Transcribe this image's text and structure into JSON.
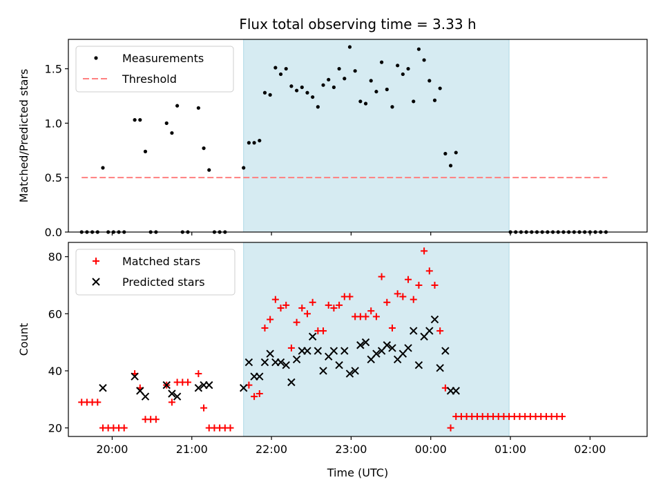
{
  "title": "Flux total observing time = 3.33 h",
  "colors": {
    "measurement": "#000000",
    "threshold": "#ff7f7f",
    "matched": "#ff0000",
    "predicted": "#000000",
    "shade": "#add8e6"
  },
  "chart_data": [
    {
      "type": "scatter",
      "panel": "top",
      "ylabel": "Matched/Predicted stars",
      "ylim": [
        0,
        1.77
      ],
      "xlim": [
        "19:27",
        "02:43"
      ],
      "yticks": [
        "0.0",
        "0.5",
        "1.0",
        "1.5"
      ],
      "legend": {
        "placement": "top-left",
        "entries": [
          "Measurements",
          "Threshold"
        ]
      },
      "shaded_region": [
        "21:39",
        "00:59"
      ],
      "threshold": {
        "value": 0.5,
        "x_range": [
          "19:37",
          "02:13"
        ],
        "style": "dashed"
      },
      "series": [
        {
          "name": "Measurements",
          "marker": "dot",
          "points": [
            [
              "19:37",
              0
            ],
            [
              "19:41",
              0
            ],
            [
              "19:45",
              0
            ],
            [
              "19:49",
              0
            ],
            [
              "19:53",
              0.59
            ],
            [
              "19:57",
              0
            ],
            [
              "20:01",
              0
            ],
            [
              "20:05",
              0
            ],
            [
              "20:09",
              0
            ],
            [
              "20:17",
              1.03
            ],
            [
              "20:21",
              1.03
            ],
            [
              "20:25",
              0.74
            ],
            [
              "20:29",
              0
            ],
            [
              "20:33",
              0
            ],
            [
              "20:41",
              1.0
            ],
            [
              "20:45",
              0.91
            ],
            [
              "20:49",
              1.16
            ],
            [
              "20:53",
              0
            ],
            [
              "20:57",
              0
            ],
            [
              "21:05",
              1.14
            ],
            [
              "21:09",
              0.77
            ],
            [
              "21:13",
              0.57
            ],
            [
              "21:17",
              0
            ],
            [
              "21:21",
              0
            ],
            [
              "21:25",
              0
            ],
            [
              "21:39",
              0.59
            ],
            [
              "21:43",
              0.82
            ],
            [
              "21:47",
              0.82
            ],
            [
              "21:51",
              0.84
            ],
            [
              "21:55",
              1.28
            ],
            [
              "21:59",
              1.26
            ],
            [
              "22:03",
              1.51
            ],
            [
              "22:07",
              1.45
            ],
            [
              "22:11",
              1.5
            ],
            [
              "22:15",
              1.34
            ],
            [
              "22:19",
              1.3
            ],
            [
              "22:23",
              1.33
            ],
            [
              "22:27",
              1.28
            ],
            [
              "22:31",
              1.24
            ],
            [
              "22:35",
              1.15
            ],
            [
              "22:39",
              1.35
            ],
            [
              "22:43",
              1.4
            ],
            [
              "22:47",
              1.33
            ],
            [
              "22:51",
              1.5
            ],
            [
              "22:55",
              1.41
            ],
            [
              "22:59",
              1.7
            ],
            [
              "23:03",
              1.48
            ],
            [
              "23:07",
              1.2
            ],
            [
              "23:11",
              1.18
            ],
            [
              "23:15",
              1.39
            ],
            [
              "23:19",
              1.29
            ],
            [
              "23:23",
              1.56
            ],
            [
              "23:27",
              1.31
            ],
            [
              "23:31",
              1.15
            ],
            [
              "23:35",
              1.53
            ],
            [
              "23:39",
              1.45
            ],
            [
              "23:43",
              1.5
            ],
            [
              "23:47",
              1.2
            ],
            [
              "23:51",
              1.68
            ],
            [
              "23:55",
              1.58
            ],
            [
              "23:59",
              1.39
            ],
            [
              "00:03",
              1.21
            ],
            [
              "00:07",
              1.32
            ],
            [
              "00:11",
              0.72
            ],
            [
              "00:15",
              0.61
            ],
            [
              "00:19",
              0.73
            ],
            [
              "01:00",
              0
            ],
            [
              "01:04",
              0
            ],
            [
              "01:08",
              0
            ],
            [
              "01:12",
              0
            ],
            [
              "01:16",
              0
            ],
            [
              "01:20",
              0
            ],
            [
              "01:24",
              0
            ],
            [
              "01:28",
              0
            ],
            [
              "01:32",
              0
            ],
            [
              "01:36",
              0
            ],
            [
              "01:40",
              0
            ],
            [
              "01:44",
              0
            ],
            [
              "01:48",
              0
            ],
            [
              "01:52",
              0
            ],
            [
              "01:56",
              0
            ],
            [
              "02:00",
              0
            ],
            [
              "02:04",
              0
            ],
            [
              "02:08",
              0
            ],
            [
              "02:12",
              0
            ]
          ]
        }
      ]
    },
    {
      "type": "scatter",
      "panel": "bottom",
      "xlabel": "Time (UTC)",
      "ylabel": "Count",
      "ylim": [
        17,
        85
      ],
      "xlim": [
        "19:27",
        "02:43"
      ],
      "yticks": [
        "20",
        "40",
        "60",
        "80"
      ],
      "xticks": [
        "20:00",
        "21:00",
        "22:00",
        "23:00",
        "00:00",
        "01:00",
        "02:00"
      ],
      "legend": {
        "placement": "top-left",
        "entries": [
          "Matched stars",
          "Predicted stars"
        ]
      },
      "shaded_region": [
        "21:39",
        "00:59"
      ],
      "series": [
        {
          "name": "Matched stars",
          "marker": "plus",
          "points": [
            [
              "19:37",
              29
            ],
            [
              "19:41",
              29
            ],
            [
              "19:45",
              29
            ],
            [
              "19:49",
              29
            ],
            [
              "19:53",
              20
            ],
            [
              "19:57",
              20
            ],
            [
              "20:01",
              20
            ],
            [
              "20:05",
              20
            ],
            [
              "20:09",
              20
            ],
            [
              "20:17",
              39
            ],
            [
              "20:21",
              34
            ],
            [
              "20:25",
              23
            ],
            [
              "20:29",
              23
            ],
            [
              "20:33",
              23
            ],
            [
              "20:41",
              35
            ],
            [
              "20:45",
              29
            ],
            [
              "20:49",
              36
            ],
            [
              "20:53",
              36
            ],
            [
              "20:57",
              36
            ],
            [
              "21:05",
              39
            ],
            [
              "21:09",
              27
            ],
            [
              "21:13",
              20
            ],
            [
              "21:17",
              20
            ],
            [
              "21:21",
              20
            ],
            [
              "21:25",
              20
            ],
            [
              "21:29",
              20
            ],
            [
              "21:43",
              35
            ],
            [
              "21:47",
              31
            ],
            [
              "21:51",
              32
            ],
            [
              "21:55",
              55
            ],
            [
              "21:59",
              58
            ],
            [
              "22:03",
              65
            ],
            [
              "22:07",
              62
            ],
            [
              "22:11",
              63
            ],
            [
              "22:15",
              48
            ],
            [
              "22:19",
              57
            ],
            [
              "22:23",
              62
            ],
            [
              "22:27",
              60
            ],
            [
              "22:31",
              64
            ],
            [
              "22:35",
              54
            ],
            [
              "22:39",
              54
            ],
            [
              "22:43",
              63
            ],
            [
              "22:47",
              62
            ],
            [
              "22:51",
              63
            ],
            [
              "22:55",
              66
            ],
            [
              "22:59",
              66
            ],
            [
              "23:03",
              59
            ],
            [
              "23:07",
              59
            ],
            [
              "23:11",
              59
            ],
            [
              "23:15",
              61
            ],
            [
              "23:19",
              59
            ],
            [
              "23:23",
              73
            ],
            [
              "23:27",
              64
            ],
            [
              "23:31",
              55
            ],
            [
              "23:35",
              67
            ],
            [
              "23:39",
              66
            ],
            [
              "23:43",
              72
            ],
            [
              "23:47",
              65
            ],
            [
              "23:51",
              70
            ],
            [
              "23:55",
              82
            ],
            [
              "23:59",
              75
            ],
            [
              "00:03",
              70
            ],
            [
              "00:07",
              54
            ],
            [
              "00:11",
              34
            ],
            [
              "00:15",
              20
            ],
            [
              "00:19",
              24
            ],
            [
              "00:23",
              24
            ],
            [
              "00:27",
              24
            ],
            [
              "00:31",
              24
            ],
            [
              "00:35",
              24
            ],
            [
              "00:39",
              24
            ],
            [
              "00:43",
              24
            ],
            [
              "00:47",
              24
            ],
            [
              "00:51",
              24
            ],
            [
              "00:55",
              24
            ],
            [
              "00:59",
              24
            ],
            [
              "01:03",
              24
            ],
            [
              "01:07",
              24
            ],
            [
              "01:11",
              24
            ],
            [
              "01:15",
              24
            ],
            [
              "01:19",
              24
            ],
            [
              "01:23",
              24
            ],
            [
              "01:27",
              24
            ],
            [
              "01:31",
              24
            ],
            [
              "01:35",
              24
            ],
            [
              "01:39",
              24
            ]
          ]
        },
        {
          "name": "Predicted stars",
          "marker": "x",
          "points": [
            [
              "19:53",
              34
            ],
            [
              "20:17",
              38
            ],
            [
              "20:21",
              33
            ],
            [
              "20:25",
              31
            ],
            [
              "20:41",
              35
            ],
            [
              "20:45",
              32
            ],
            [
              "20:49",
              31
            ],
            [
              "21:05",
              34
            ],
            [
              "21:09",
              35
            ],
            [
              "21:13",
              35
            ],
            [
              "21:39",
              34
            ],
            [
              "21:43",
              43
            ],
            [
              "21:47",
              38
            ],
            [
              "21:51",
              38
            ],
            [
              "21:55",
              43
            ],
            [
              "21:59",
              46
            ],
            [
              "22:03",
              43
            ],
            [
              "22:07",
              43
            ],
            [
              "22:11",
              42
            ],
            [
              "22:15",
              36
            ],
            [
              "22:19",
              44
            ],
            [
              "22:23",
              47
            ],
            [
              "22:27",
              47
            ],
            [
              "22:31",
              52
            ],
            [
              "22:35",
              47
            ],
            [
              "22:39",
              40
            ],
            [
              "22:43",
              45
            ],
            [
              "22:47",
              47
            ],
            [
              "22:51",
              42
            ],
            [
              "22:55",
              47
            ],
            [
              "22:59",
              39
            ],
            [
              "23:03",
              40
            ],
            [
              "23:07",
              49
            ],
            [
              "23:11",
              50
            ],
            [
              "23:15",
              44
            ],
            [
              "23:19",
              46
            ],
            [
              "23:23",
              47
            ],
            [
              "23:27",
              49
            ],
            [
              "23:31",
              48
            ],
            [
              "23:35",
              44
            ],
            [
              "23:39",
              46
            ],
            [
              "23:43",
              48
            ],
            [
              "23:47",
              54
            ],
            [
              "23:51",
              42
            ],
            [
              "23:55",
              52
            ],
            [
              "23:59",
              54
            ],
            [
              "00:03",
              58
            ],
            [
              "00:07",
              41
            ],
            [
              "00:11",
              47
            ],
            [
              "00:15",
              33
            ],
            [
              "00:19",
              33
            ]
          ]
        }
      ]
    }
  ]
}
